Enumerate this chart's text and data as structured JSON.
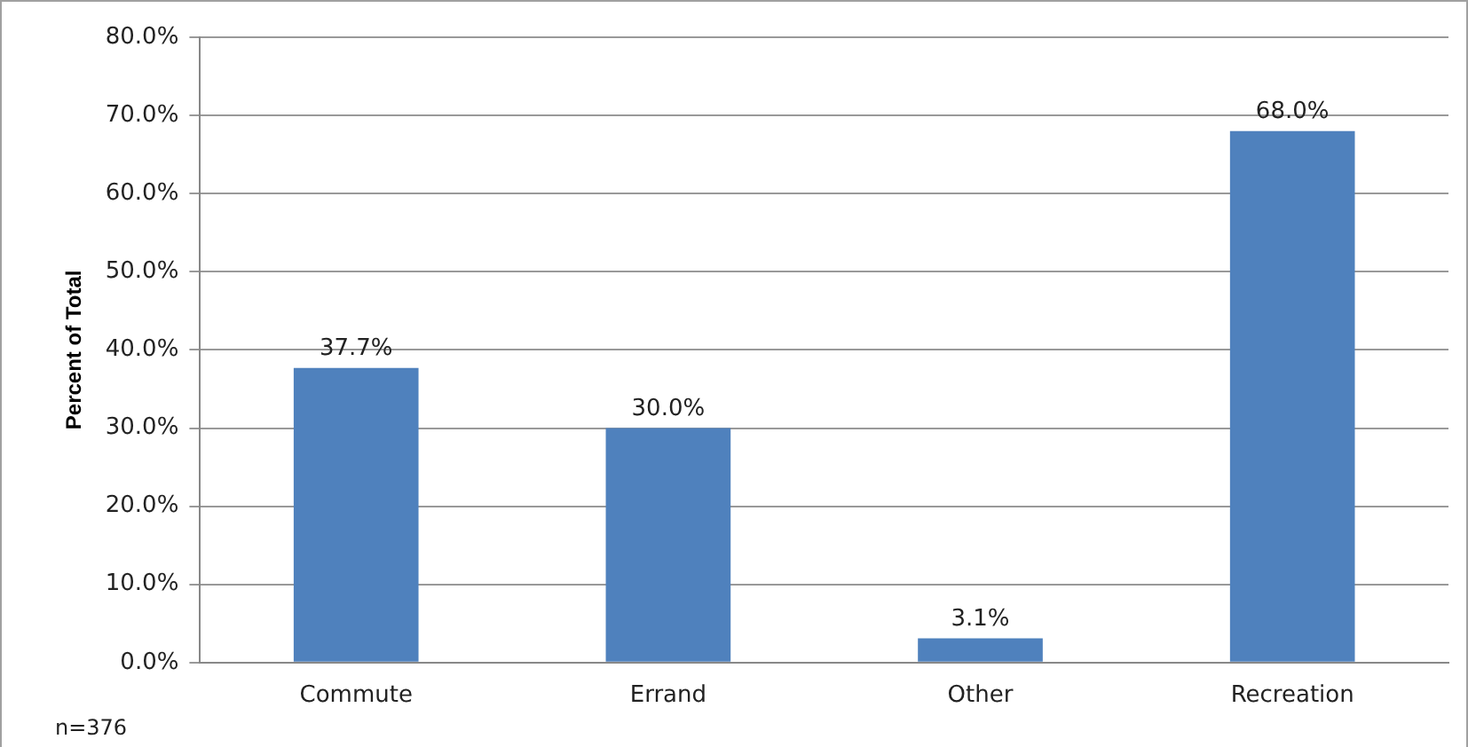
{
  "chart_data": {
    "type": "bar",
    "ylabel": "Percent of Total",
    "categories": [
      "Commute",
      "Errand",
      "Other",
      "Recreation"
    ],
    "values": [
      37.7,
      30.0,
      3.1,
      68.0
    ],
    "color": "#4f81bd",
    "value_labels": [
      "37.7%",
      "30.0%",
      "3.1%",
      "68.0%"
    ],
    "ylim": [
      0,
      80
    ],
    "yticks": [
      {
        "value": 0,
        "label": "0.0%"
      },
      {
        "value": 10,
        "label": "10.0%"
      },
      {
        "value": 20,
        "label": "20.0%"
      },
      {
        "value": 30,
        "label": "30.0%"
      },
      {
        "value": 40,
        "label": "40.0%"
      },
      {
        "value": 50,
        "label": "50.0%"
      },
      {
        "value": 60,
        "label": "60.0%"
      },
      {
        "value": 70,
        "label": "70.0%"
      },
      {
        "value": 80,
        "label": "80.0%"
      }
    ],
    "grid": "y",
    "legend": false,
    "annotations": [
      "n=376"
    ]
  }
}
